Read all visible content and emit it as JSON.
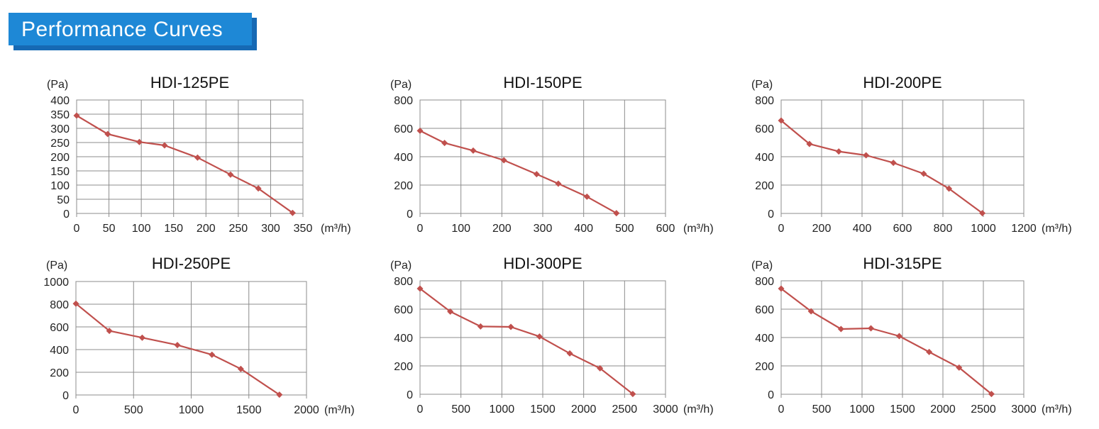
{
  "header": {
    "title": "Performance Curves"
  },
  "colors": {
    "accent": "#1e88d6",
    "series": "#c0504d",
    "grid": "#8c8c8c"
  },
  "chart_data": [
    {
      "type": "line",
      "title": "HDI-125PE",
      "ylabel": "(Pa)",
      "xlabel": "(m³/h)",
      "xlim": [
        0,
        350
      ],
      "ylim": [
        0,
        400
      ],
      "xticks": [
        0,
        50,
        100,
        150,
        200,
        250,
        300,
        350
      ],
      "yticks": [
        0,
        50,
        100,
        150,
        200,
        250,
        300,
        350,
        400
      ],
      "grid": true,
      "series": [
        {
          "x": [
            0,
            48,
            97,
            136,
            187,
            238,
            281,
            334
          ],
          "y": [
            345,
            280,
            252,
            240,
            197,
            137,
            88,
            2
          ]
        }
      ]
    },
    {
      "type": "line",
      "title": "HDI-150PE",
      "ylabel": "(Pa)",
      "xlabel": "(m³/h)",
      "xlim": [
        0,
        600
      ],
      "ylim": [
        0,
        800
      ],
      "xticks": [
        0,
        100,
        200,
        300,
        400,
        500,
        600
      ],
      "yticks": [
        0,
        200,
        400,
        600,
        800
      ],
      "grid": true,
      "series": [
        {
          "x": [
            0,
            60,
            130,
            205,
            285,
            338,
            408,
            480
          ],
          "y": [
            583,
            497,
            443,
            375,
            277,
            210,
            118,
            2
          ]
        }
      ]
    },
    {
      "type": "line",
      "title": "HDI-200PE",
      "ylabel": "(Pa)",
      "xlabel": "(m³/h)",
      "xlim": [
        0,
        1200
      ],
      "ylim": [
        0,
        800
      ],
      "xticks": [
        0,
        200,
        400,
        600,
        800,
        1000,
        1200
      ],
      "yticks": [
        0,
        200,
        400,
        600,
        800
      ],
      "grid": true,
      "series": [
        {
          "x": [
            0,
            140,
            285,
            420,
            555,
            705,
            830,
            995
          ],
          "y": [
            655,
            490,
            437,
            410,
            357,
            280,
            175,
            2
          ]
        }
      ]
    },
    {
      "type": "line",
      "title": "HDI-250PE",
      "ylabel": "(Pa)",
      "xlabel": "(m³/h)",
      "xlim": [
        0,
        2000
      ],
      "ylim": [
        0,
        1000
      ],
      "xticks": [
        0,
        500,
        1000,
        1500,
        2000
      ],
      "yticks": [
        0,
        200,
        400,
        600,
        800,
        1000
      ],
      "grid": true,
      "series": [
        {
          "x": [
            0,
            290,
            575,
            880,
            1180,
            1430,
            1765
          ],
          "y": [
            805,
            565,
            505,
            440,
            355,
            230,
            2
          ]
        }
      ]
    },
    {
      "type": "line",
      "title": "HDI-300PE",
      "ylabel": "(Pa)",
      "xlabel": "(m³/h)",
      "xlim": [
        0,
        3000
      ],
      "ylim": [
        0,
        800
      ],
      "xticks": [
        0,
        500,
        1000,
        1500,
        2000,
        2500,
        3000
      ],
      "yticks": [
        0,
        200,
        400,
        600,
        800
      ],
      "grid": true,
      "series": [
        {
          "x": [
            0,
            370,
            740,
            1110,
            1460,
            1830,
            2200,
            2600
          ],
          "y": [
            745,
            583,
            478,
            475,
            407,
            288,
            183,
            2
          ]
        }
      ]
    },
    {
      "type": "line",
      "title": "HDI-315PE",
      "ylabel": "(Pa)",
      "xlabel": "(m³/h)",
      "xlim": [
        0,
        3000
      ],
      "ylim": [
        0,
        800
      ],
      "xticks": [
        0,
        500,
        1000,
        1500,
        2000,
        2500,
        3000
      ],
      "yticks": [
        0,
        200,
        400,
        600,
        800
      ],
      "grid": true,
      "series": [
        {
          "x": [
            0,
            370,
            740,
            1110,
            1460,
            1830,
            2200,
            2600
          ],
          "y": [
            745,
            585,
            460,
            465,
            410,
            298,
            188,
            2
          ]
        }
      ]
    }
  ]
}
